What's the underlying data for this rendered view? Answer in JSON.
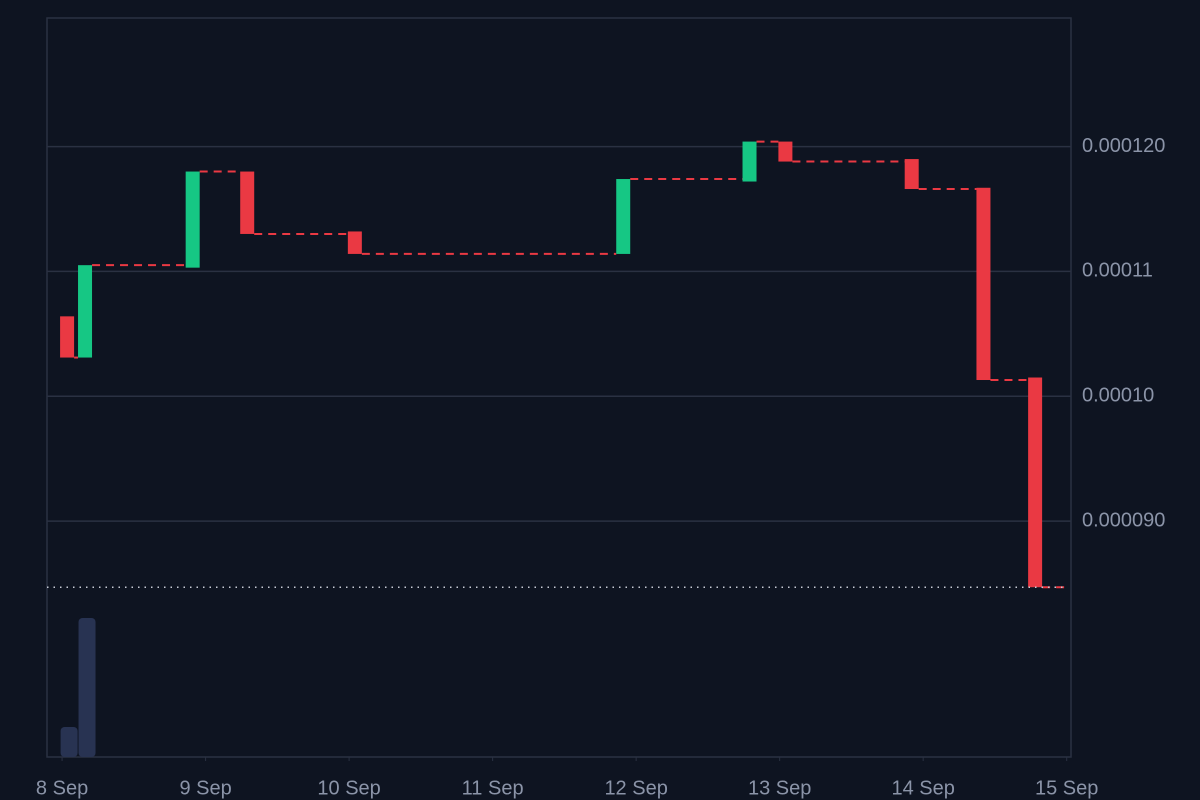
{
  "chart_data": {
    "type": "candlestick",
    "x": [
      0.035,
      0.16,
      0.91,
      1.29,
      2.04,
      3.91,
      4.79,
      5.04,
      5.92,
      6.42,
      6.78
    ],
    "open": [
      0.0001064,
      0.0001031,
      0.0001103,
      0.000118,
      0.0001132,
      0.0001114,
      0.0001172,
      0.0001204,
      0.000119,
      0.0001167,
      0.0001015
    ],
    "close": [
      0.0001031,
      0.0001105,
      0.000118,
      0.000113,
      0.0001114,
      0.0001174,
      0.0001204,
      0.0001188,
      0.0001166,
      0.0001013,
      8.47e-05
    ],
    "volume": [
      30,
      139,
      0,
      0,
      0,
      0,
      0,
      0,
      0,
      0,
      0
    ],
    "volume_lim": [
      0,
      140
    ],
    "up_color": "#16c784",
    "down_color": "#ea3943",
    "volume_color": "#283352",
    "xlim": [
      -0.105,
      7.03
    ],
    "xticks": [
      {
        "value": 0,
        "label": "8 Sep"
      },
      {
        "value": 1,
        "label": "9 Sep"
      },
      {
        "value": 2,
        "label": "10 Sep"
      },
      {
        "value": 3,
        "label": "11 Sep"
      },
      {
        "value": 4,
        "label": "12 Sep"
      },
      {
        "value": 5,
        "label": "13 Sep"
      },
      {
        "value": 6,
        "label": "14 Sep"
      },
      {
        "value": 7,
        "label": "15 Sep"
      }
    ],
    "ylim": [
      7.11e-05,
      0.0001303
    ],
    "yticks": [
      {
        "value": 9e-05,
        "label": "0.000090"
      },
      {
        "value": 0.0001,
        "label": "0.00010"
      },
      {
        "value": 0.00011,
        "label": "0.00011"
      },
      {
        "value": 0.00012,
        "label": "0.000120"
      }
    ],
    "grid": true
  }
}
